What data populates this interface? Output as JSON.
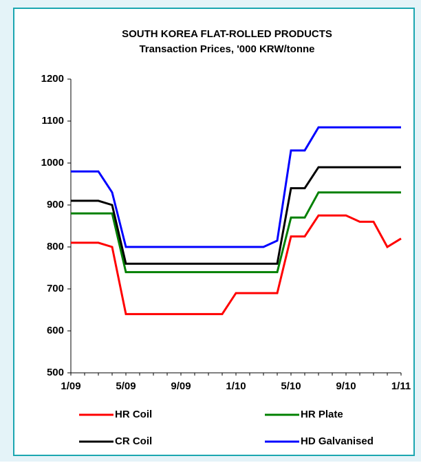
{
  "chart_data": {
    "type": "line",
    "title": "SOUTH KOREA FLAT-ROLLED PRODUCTS",
    "subtitle": "Transaction Prices, '000 KRW/tonne",
    "categories": [
      "1/09",
      null,
      null,
      null,
      "5/09",
      null,
      null,
      null,
      "9/09",
      null,
      null,
      null,
      "1/10",
      null,
      null,
      null,
      "5/10",
      null,
      null,
      null,
      "9/10",
      null,
      null,
      null,
      "1/11"
    ],
    "series": [
      {
        "name": "HR Coil",
        "color": "#ff0000",
        "values": [
          810,
          810,
          810,
          800,
          640,
          640,
          640,
          640,
          640,
          640,
          640,
          640,
          690,
          690,
          690,
          690,
          825,
          825,
          875,
          875,
          875,
          860,
          860,
          800,
          820
        ]
      },
      {
        "name": "HR Plate",
        "color": "#008000",
        "values": [
          880,
          880,
          880,
          880,
          740,
          740,
          740,
          740,
          740,
          740,
          740,
          740,
          740,
          740,
          740,
          740,
          870,
          870,
          930,
          930,
          930,
          930,
          930,
          930,
          930
        ]
      },
      {
        "name": "CR Coil",
        "color": "#000000",
        "values": [
          910,
          910,
          910,
          900,
          760,
          760,
          760,
          760,
          760,
          760,
          760,
          760,
          760,
          760,
          760,
          760,
          940,
          940,
          990,
          990,
          990,
          990,
          990,
          990,
          990
        ]
      },
      {
        "name": "HD Galvanised",
        "color": "#0000ff",
        "values": [
          980,
          980,
          980,
          930,
          800,
          800,
          800,
          800,
          800,
          800,
          800,
          800,
          800,
          800,
          800,
          815,
          1030,
          1030,
          1085,
          1085,
          1085,
          1085,
          1085,
          1085,
          1085
        ]
      }
    ],
    "ylim": [
      500,
      1200
    ],
    "yticks": [
      500,
      600,
      700,
      800,
      900,
      1000,
      1100,
      1200
    ],
    "grid": false
  }
}
